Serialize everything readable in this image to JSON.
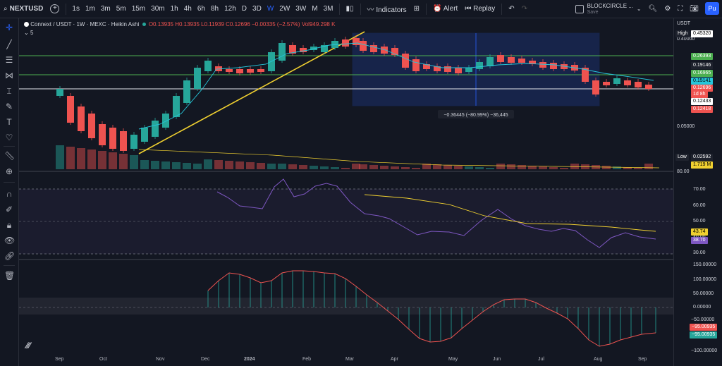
{
  "toolbar": {
    "symbol": "NEXTUSD",
    "intervals": [
      "1s",
      "1m",
      "3m",
      "5m",
      "15m",
      "30m",
      "1h",
      "4h",
      "6h",
      "8h",
      "12h",
      "D",
      "3D",
      "W",
      "2W",
      "3W",
      "M",
      "3M"
    ],
    "active_interval": "W",
    "indicators_label": "Indicators",
    "alert_label": "Alert",
    "replay_label": "Replay",
    "layout_name": "BLOCKCIRCLE ...",
    "save_label": "Save",
    "publish_label": "Pu"
  },
  "legend": {
    "title": "Connext / USDT · 1W · MEXC · Heikin Ashi",
    "o": "O0.13935",
    "h": "H0.13935",
    "l": "L0.11939",
    "c": "C0.12696",
    "chg": "−0.00335 (−2.57%)",
    "vol": "Vol949.298 K",
    "collapse": "5"
  },
  "measure_label": "−0.36445 (−80.99%) −36,445",
  "price_scale": {
    "currency": "USDT",
    "ticks": [
      "0.40000",
      "0.05000",
      "80.00"
    ],
    "labels": [
      {
        "text": "0.45320",
        "tag": "High"
      },
      {
        "text": "0.26393"
      },
      {
        "text": "0.19146"
      },
      {
        "text": "0.16965"
      },
      {
        "text": "0.15141"
      },
      {
        "text": "0.12696"
      },
      {
        "text": "1d 8h"
      },
      {
        "text": "0.12433"
      },
      {
        "text": "0.12418"
      },
      {
        "text": "0.02592",
        "tag": "Low"
      },
      {
        "text": "1.719 M"
      }
    ]
  },
  "rsi_scale": {
    "ticks": [
      "70.00",
      "60.00",
      "50.00",
      "40.00",
      "30.00"
    ],
    "val1": "43.74",
    "val2": "38.70"
  },
  "macd_scale": {
    "ticks": [
      "150.00000",
      "100.00000",
      "50.00000",
      "0.00000",
      "−50.00000",
      "−100.00000"
    ],
    "val1": "−95.00935",
    "val2": "−95.00935"
  },
  "xaxis": [
    "Sep",
    "Oct",
    "Nov",
    "Dec",
    "2024",
    "Feb",
    "Mar",
    "Apr",
    "May",
    "Jun",
    "Jul",
    "Aug",
    "Sep"
  ],
  "colors": {
    "up": "#26a69a",
    "down": "#ef5350",
    "bg": "#131722",
    "grid": "#2a2e39",
    "accent": "#2962ff",
    "trendline": "#f0d030",
    "hline": "#4caf50"
  }
}
